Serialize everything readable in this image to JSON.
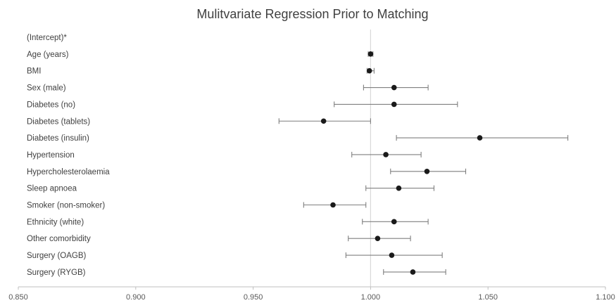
{
  "chart_data": {
    "type": "scatter",
    "title": "Mulitvariate Regression Prior to Matching",
    "xlim": [
      0.85,
      1.1
    ],
    "x_ticks": [
      "0.850",
      "0.900",
      "0.950",
      "1.000",
      "1.050",
      "1.100"
    ],
    "x_tick_values": [
      0.85,
      0.9,
      0.95,
      1.0,
      1.05,
      1.1
    ],
    "reference_line": 1.0,
    "grid": false,
    "legend": "none",
    "colors": {
      "point": "#1a1a1a",
      "error_bar": "#7f7f7f",
      "reference_line": "#d9d9d9",
      "axis": "#bfbfbf",
      "text": "#404040"
    },
    "rows": [
      {
        "label": "(Intercept)*",
        "estimate": null,
        "lower": null,
        "upper": null
      },
      {
        "label": "Age (years)",
        "estimate": 1.0,
        "lower": 0.999,
        "upper": 1.001
      },
      {
        "label": "BMI",
        "estimate": 0.9995,
        "lower": 0.9985,
        "upper": 1.0015
      },
      {
        "label": "Sex (male)",
        "estimate": 1.01,
        "lower": 0.997,
        "upper": 1.0245
      },
      {
        "label": "Diabetes (no)",
        "estimate": 1.01,
        "lower": 0.9845,
        "upper": 1.037
      },
      {
        "label": "Diabetes (tablets)",
        "estimate": 0.98,
        "lower": 0.961,
        "upper": 1.0
      },
      {
        "label": "Diabetes (insulin)",
        "estimate": 1.0465,
        "lower": 1.011,
        "upper": 1.084
      },
      {
        "label": "Hypertension",
        "estimate": 1.0065,
        "lower": 0.992,
        "upper": 1.0215
      },
      {
        "label": "Hypercholesterolaemia",
        "estimate": 1.024,
        "lower": 1.0085,
        "upper": 1.0405
      },
      {
        "label": "Sleep apnoea",
        "estimate": 1.012,
        "lower": 0.998,
        "upper": 1.027
      },
      {
        "label": "Smoker (non-smoker)",
        "estimate": 0.984,
        "lower": 0.9715,
        "upper": 0.998
      },
      {
        "label": "Ethnicity (white)",
        "estimate": 1.01,
        "lower": 0.9965,
        "upper": 1.0245
      },
      {
        "label": "Other comorbidity",
        "estimate": 1.003,
        "lower": 0.9905,
        "upper": 1.017
      },
      {
        "label": "Surgery (OAGB)",
        "estimate": 1.009,
        "lower": 0.9895,
        "upper": 1.0305
      },
      {
        "label": "Surgery (RYGB)",
        "estimate": 1.018,
        "lower": 1.0055,
        "upper": 1.032
      }
    ]
  }
}
